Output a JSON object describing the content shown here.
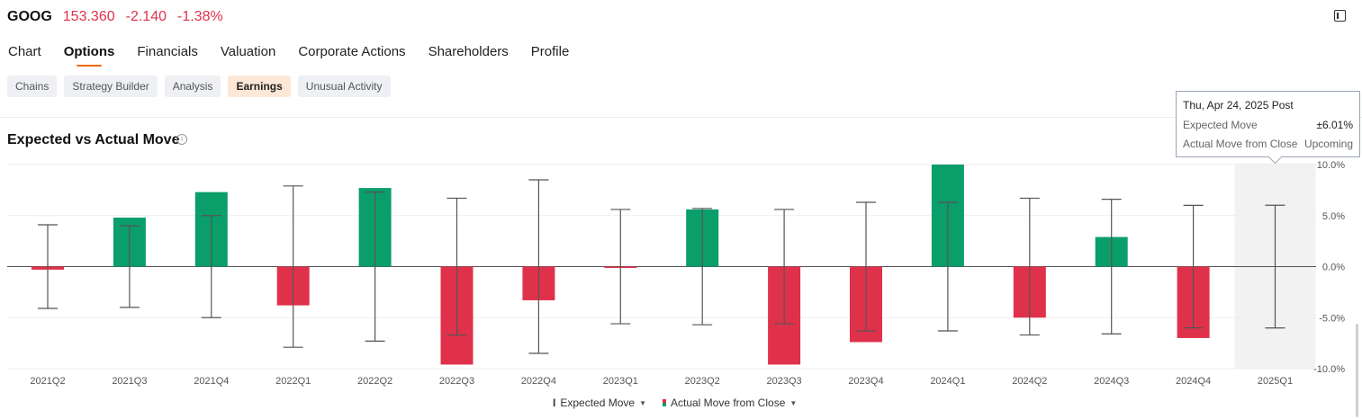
{
  "header": {
    "ticker": "GOOG",
    "price": "153.360",
    "change": "-2.140",
    "change_pct": "-1.38%",
    "negative_color": "#e0314b"
  },
  "tabs": [
    {
      "label": "Chart"
    },
    {
      "label": "Options"
    },
    {
      "label": "Financials"
    },
    {
      "label": "Valuation"
    },
    {
      "label": "Corporate Actions"
    },
    {
      "label": "Shareholders"
    },
    {
      "label": "Profile"
    }
  ],
  "active_tab": "Options",
  "subtabs": [
    {
      "label": "Chains"
    },
    {
      "label": "Strategy Builder"
    },
    {
      "label": "Analysis"
    },
    {
      "label": "Earnings"
    },
    {
      "label": "Unusual Activity"
    }
  ],
  "active_subtab": "Earnings",
  "section_title": "Expected vs Actual Move",
  "tooltip": {
    "date": "Thu, Apr 24, 2025 Post",
    "rows": [
      {
        "label": "Expected Move",
        "value": "±6.01%"
      },
      {
        "label": "Actual Move from Close",
        "value": "Upcoming"
      }
    ]
  },
  "legend": {
    "expected_label": "Expected Move",
    "actual_label": "Actual Move from Close"
  },
  "colors": {
    "positive": "#0a9e6b",
    "negative": "#e0314b",
    "whisker": "#555555",
    "highlight": "#f2f2f2"
  },
  "chart_data": {
    "type": "bar",
    "title": "Expected vs Actual Move",
    "categories": [
      "2021Q2",
      "2021Q3",
      "2021Q4",
      "2022Q1",
      "2022Q2",
      "2022Q3",
      "2022Q4",
      "2023Q1",
      "2023Q2",
      "2023Q3",
      "2023Q4",
      "2024Q1",
      "2024Q2",
      "2024Q3",
      "2024Q4",
      "2025Q1"
    ],
    "series": [
      {
        "name": "Actual Move from Close",
        "values": [
          -0.3,
          4.8,
          7.3,
          -3.8,
          7.7,
          -9.6,
          -3.3,
          -0.1,
          5.6,
          -9.6,
          -7.4,
          10.0,
          -5.0,
          2.9,
          -7.0,
          null
        ]
      },
      {
        "name": "Expected Move",
        "values": [
          4.1,
          4.0,
          5.0,
          7.9,
          7.3,
          6.7,
          8.5,
          5.6,
          5.7,
          5.6,
          6.3,
          6.3,
          6.7,
          6.6,
          6.0,
          6.01
        ]
      }
    ],
    "y_ticks": [
      "10.0%",
      "5.0%",
      "0.0%",
      "-5.0%",
      "-10.0%"
    ],
    "ylim": [
      -10,
      10
    ],
    "highlighted_category": "2025Q1"
  }
}
